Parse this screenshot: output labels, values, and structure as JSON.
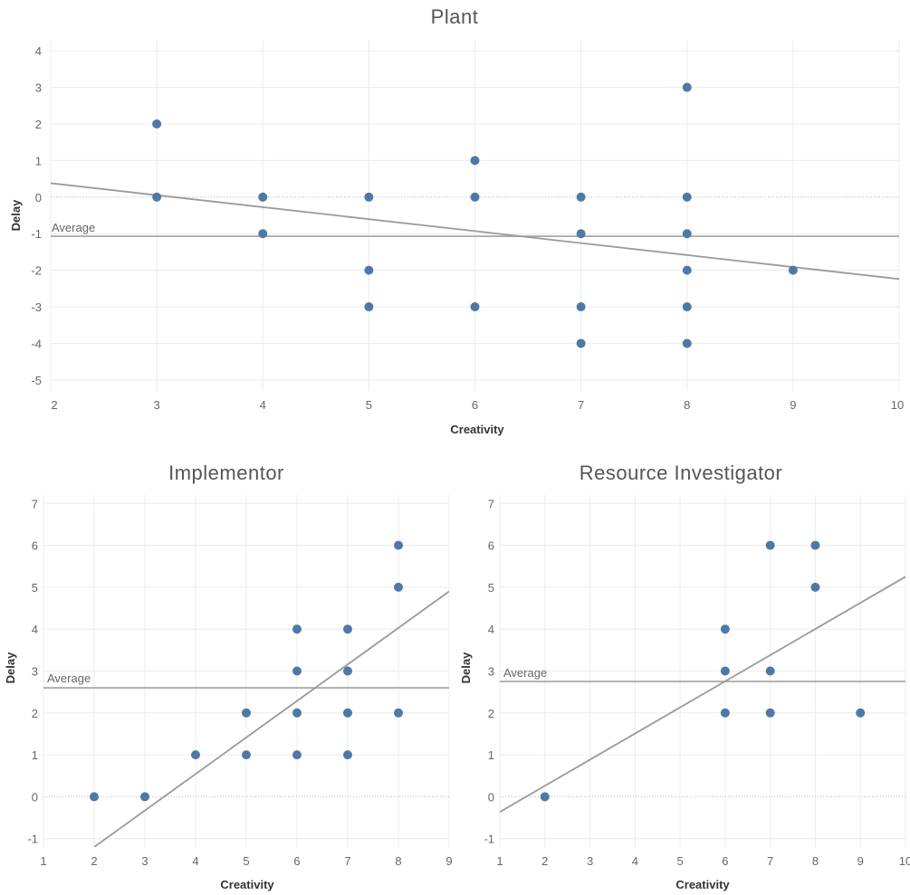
{
  "colors": {
    "point": "#4e79a7",
    "average": "#a0a0a0",
    "trend": "#9a9a9a"
  },
  "chart_data": [
    {
      "type": "scatter",
      "title": "Plant",
      "xlabel": "Creativity",
      "ylabel": "Delay",
      "xlim": [
        2,
        10
      ],
      "ylim": [
        -5.3,
        4.3
      ],
      "xticks": [
        2,
        3,
        4,
        5,
        6,
        7,
        8,
        9,
        10
      ],
      "yticks": [
        4,
        3,
        2,
        1,
        0,
        -1,
        -2,
        -3,
        -4,
        -5
      ],
      "average_label": "Average",
      "average": -1.07,
      "trend_line": [
        [
          2,
          0.38
        ],
        [
          10,
          -2.24
        ]
      ],
      "points": [
        [
          3,
          2
        ],
        [
          3,
          0
        ],
        [
          4,
          0
        ],
        [
          4,
          -1
        ],
        [
          5,
          0
        ],
        [
          5,
          -2
        ],
        [
          5,
          -3
        ],
        [
          6,
          1
        ],
        [
          6,
          0
        ],
        [
          6,
          -3
        ],
        [
          7,
          0
        ],
        [
          7,
          -1
        ],
        [
          7,
          -3
        ],
        [
          7,
          -4
        ],
        [
          8,
          3
        ],
        [
          8,
          0
        ],
        [
          8,
          -1
        ],
        [
          8,
          -2
        ],
        [
          8,
          -3
        ],
        [
          8,
          -4
        ],
        [
          9,
          -2
        ]
      ]
    },
    {
      "type": "scatter",
      "title": "Implementor",
      "xlabel": "Creativity",
      "ylabel": "Delay",
      "xlim": [
        1,
        9
      ],
      "ylim": [
        -1.2,
        7.2
      ],
      "xticks": [
        1,
        2,
        3,
        4,
        5,
        6,
        7,
        8,
        9
      ],
      "yticks": [
        7,
        6,
        5,
        4,
        3,
        2,
        1,
        0,
        -1
      ],
      "average_label": "Average",
      "average": 2.6,
      "trend_line": [
        [
          2,
          -1.2
        ],
        [
          9,
          4.9
        ]
      ],
      "points": [
        [
          2,
          0
        ],
        [
          3,
          0
        ],
        [
          4,
          1
        ],
        [
          5,
          2
        ],
        [
          5,
          1
        ],
        [
          6,
          4
        ],
        [
          6,
          3
        ],
        [
          6,
          2
        ],
        [
          6,
          1
        ],
        [
          7,
          4
        ],
        [
          7,
          3
        ],
        [
          7,
          2
        ],
        [
          7,
          1
        ],
        [
          8,
          6
        ],
        [
          8,
          5
        ],
        [
          8,
          2
        ]
      ]
    },
    {
      "type": "scatter",
      "title": "Resource Investigator",
      "xlabel": "Creativity",
      "ylabel": "Delay",
      "xlim": [
        1,
        10
      ],
      "ylim": [
        -1.2,
        7.2
      ],
      "xticks": [
        1,
        2,
        3,
        4,
        5,
        6,
        7,
        8,
        9,
        10
      ],
      "yticks": [
        7,
        6,
        5,
        4,
        3,
        2,
        1,
        0,
        -1
      ],
      "average_label": "Average",
      "average": 2.75,
      "trend_line": [
        [
          0.7,
          -0.55
        ],
        [
          10,
          5.25
        ]
      ],
      "points": [
        [
          2,
          0
        ],
        [
          6,
          4
        ],
        [
          6,
          3
        ],
        [
          6,
          2
        ],
        [
          7,
          6
        ],
        [
          7,
          3
        ],
        [
          7,
          2
        ],
        [
          8,
          6
        ],
        [
          8,
          5
        ],
        [
          9,
          2
        ]
      ]
    }
  ]
}
